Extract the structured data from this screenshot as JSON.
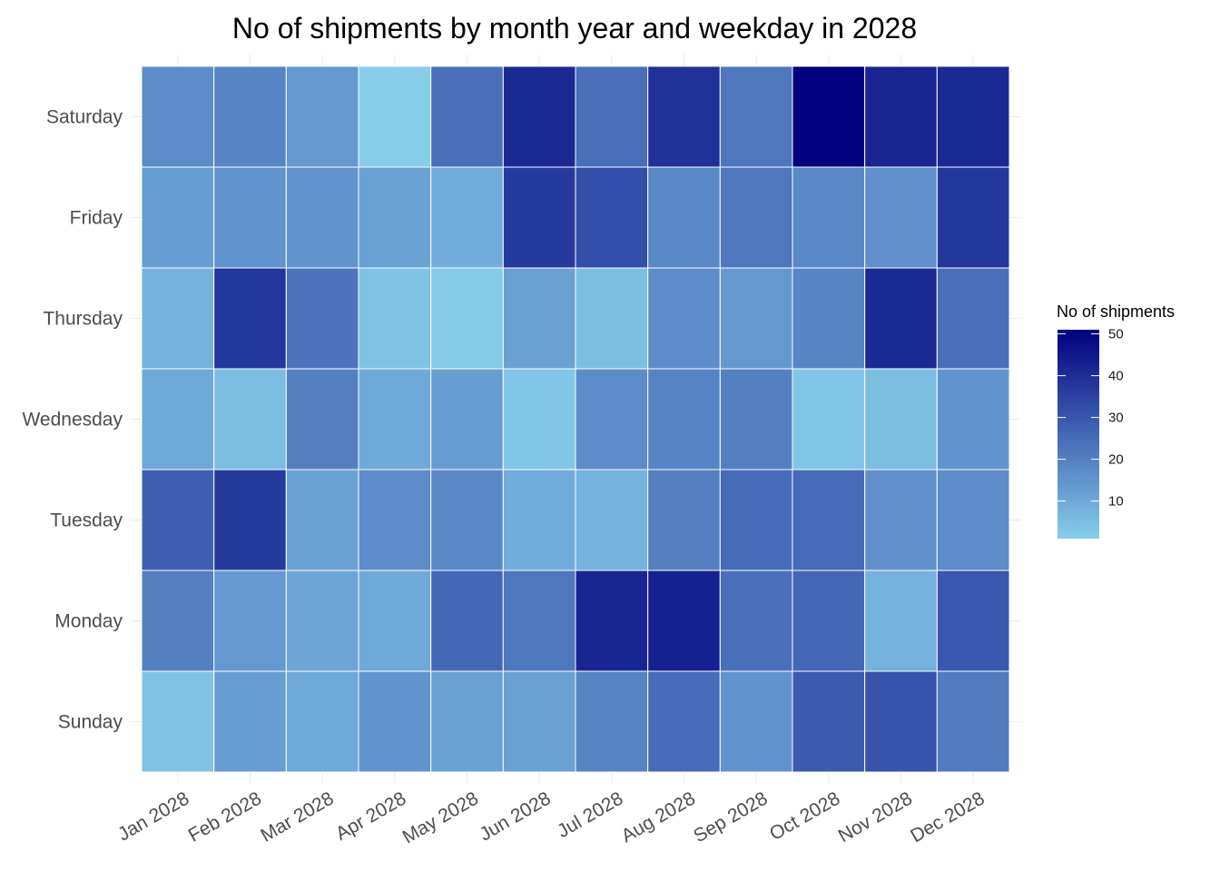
{
  "chart_data": {
    "type": "heatmap",
    "title": "No of shipments by month year and weekday in 2028",
    "xlabel": "",
    "ylabel": "",
    "x_categories": [
      "Jan 2028",
      "Feb 2028",
      "Mar 2028",
      "Apr 2028",
      "May 2028",
      "Jun 2028",
      "Jul 2028",
      "Aug 2028",
      "Sep 2028",
      "Oct 2028",
      "Nov 2028",
      "Dec 2028"
    ],
    "y_categories": [
      "Saturday",
      "Friday",
      "Thursday",
      "Wednesday",
      "Tuesday",
      "Monday",
      "Sunday"
    ],
    "values": [
      [
        17,
        19,
        14,
        1,
        24,
        41,
        24,
        39,
        22,
        51,
        42,
        41
      ],
      [
        13,
        15,
        15,
        12,
        9,
        37,
        32,
        18,
        22,
        18,
        16,
        38
      ],
      [
        8,
        38,
        23,
        4,
        2,
        12,
        5,
        17,
        14,
        19,
        41,
        24
      ],
      [
        10,
        5,
        20,
        10,
        13,
        3,
        17,
        19,
        20,
        3,
        5,
        15
      ],
      [
        28,
        37,
        12,
        17,
        18,
        9,
        8,
        20,
        25,
        25,
        16,
        17
      ],
      [
        20,
        14,
        11,
        10,
        26,
        22,
        42,
        43,
        24,
        26,
        8,
        30
      ],
      [
        4,
        13,
        10,
        15,
        12,
        12,
        19,
        25,
        15,
        29,
        31,
        21
      ]
    ],
    "color_scale": {
      "low": "#87ceeb",
      "high": "#000080",
      "min": 1,
      "max": 51
    },
    "legend": {
      "title": "No of shipments",
      "ticks": [
        10,
        20,
        30,
        40,
        50
      ],
      "placement": "right"
    },
    "grid": true
  }
}
